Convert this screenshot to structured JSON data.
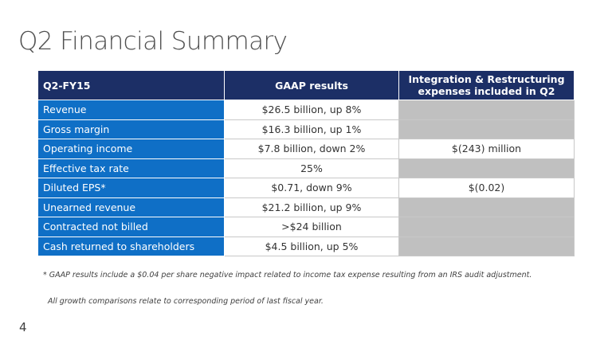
{
  "slide": {
    "title": "Q2 Financial Summary",
    "page_number": "4"
  },
  "table": {
    "headers": {
      "metric": "Q2-FY15",
      "gaap": "GAAP results",
      "ir": "Integration & Restructuring expenses included in Q2"
    },
    "rows": [
      {
        "metric": "Revenue",
        "gaap": "$26.5 billion, up 8%",
        "ir": ""
      },
      {
        "metric": "Gross margin",
        "gaap": "$16.3 billion, up 1%",
        "ir": ""
      },
      {
        "metric": "Operating income",
        "gaap": "$7.8 billion, down 2%",
        "ir": "$(243) million"
      },
      {
        "metric": "Effective tax rate",
        "gaap": "25%",
        "ir": ""
      },
      {
        "metric": "Diluted EPS*",
        "gaap": "$0.71, down 9%",
        "ir": "$(0.02)"
      },
      {
        "metric": "Unearned revenue",
        "gaap": "$21.2 billion, up 9%",
        "ir": ""
      },
      {
        "metric": "Contracted not billed",
        "gaap": ">$24 billion",
        "ir": ""
      },
      {
        "metric": "Cash returned to shareholders",
        "gaap": "$4.5 billion, up 5%",
        "ir": ""
      }
    ]
  },
  "footnote": "* GAAP results include a $0.04 per share negative impact related to income tax expense resulting from an IRS audit adjustment.",
  "note": "All growth comparisons relate to corresponding period of last fiscal year.",
  "colors": {
    "header_bg": "#1c2f66",
    "metric_bg": "#0f6fc6",
    "empty_cell_bg": "#c0c0c0",
    "title_text": "#505050"
  }
}
